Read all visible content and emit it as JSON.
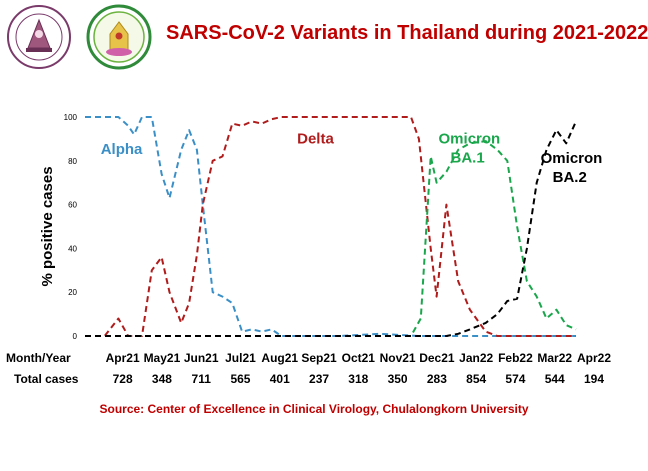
{
  "title": "SARS-CoV-2 Variants in Thailand during 2021-2022",
  "source": "Source: Center of Excellence in Clinical Virology, Chulalongkorn  University",
  "logos": [
    {
      "name": "Center of Excellence in Clinical Virology seal",
      "text": "Center of Excellence in Clinical Virology"
    },
    {
      "name": "Faculty of Medicine Chulalongkorn University seal",
      "text": "Faculty of Medicine Chulalongkorn University"
    }
  ],
  "colors": {
    "title": "#c00000",
    "alpha": "#3b8fc7",
    "delta": "#b01c1c",
    "ba1": "#1aa64b",
    "ba2": "#000000",
    "baseline": "#000000"
  },
  "chart_data": {
    "type": "line",
    "ylabel": "% positive cases",
    "ylim": [
      0,
      100
    ],
    "yticks": [
      0,
      20,
      40,
      60,
      80,
      100
    ],
    "xlim": [
      0,
      12.5
    ],
    "grid": false,
    "month_row_label": "Month/Year",
    "total_row_label": "Total cases",
    "months": [
      {
        "label": "Apr21",
        "x": 0.5,
        "total": "728"
      },
      {
        "label": "May21",
        "x": 1.5,
        "total": "348"
      },
      {
        "label": "Jun21",
        "x": 2.5,
        "total": "711"
      },
      {
        "label": "Jul21",
        "x": 3.5,
        "total": "565"
      },
      {
        "label": "Aug21",
        "x": 4.5,
        "total": "401"
      },
      {
        "label": "Sep21",
        "x": 5.5,
        "total": "237"
      },
      {
        "label": "Oct21",
        "x": 6.5,
        "total": "318"
      },
      {
        "label": "Nov21",
        "x": 7.5,
        "total": "350"
      },
      {
        "label": "Dec21",
        "x": 8.5,
        "total": "283"
      },
      {
        "label": "Jan22",
        "x": 9.5,
        "total": "854"
      },
      {
        "label": "Feb22",
        "x": 10.5,
        "total": "574"
      },
      {
        "label": "Mar22",
        "x": 11.5,
        "total": "544"
      },
      {
        "label": "Apr22",
        "x": 12.5,
        "total": "194"
      }
    ],
    "series": [
      {
        "name": "Alpha",
        "label_lines": [
          "Alpha"
        ],
        "label_pos": {
          "x": 0.4,
          "y": 83
        },
        "x": [
          0,
          0.5,
          0.85,
          1.1,
          1.25,
          1.45,
          1.7,
          1.95,
          2.15,
          2.45,
          2.65,
          2.85,
          3.0,
          3.25,
          3.5,
          3.75,
          4.0,
          4.25,
          4.5,
          4.75,
          5.0,
          5.5,
          6.5,
          7.5,
          8.5,
          9.5,
          10.5,
          11.5,
          12.5
        ],
        "y": [
          100,
          100,
          100,
          96,
          92,
          100,
          100,
          74,
          63,
          85,
          94,
          85,
          60,
          20,
          18,
          15,
          2,
          3,
          2,
          3,
          0,
          0,
          0,
          1,
          0,
          0,
          0,
          0,
          0
        ]
      },
      {
        "name": "Delta",
        "label_lines": [
          "Delta"
        ],
        "label_pos": {
          "x": 5.4,
          "y": 88
        },
        "x": [
          0,
          0.5,
          0.85,
          1.1,
          1.25,
          1.45,
          1.7,
          1.95,
          2.15,
          2.45,
          2.65,
          2.85,
          3.0,
          3.25,
          3.5,
          3.75,
          4.0,
          4.25,
          4.5,
          4.75,
          5.0,
          5.5,
          6.5,
          7.5,
          8.3,
          8.5,
          8.8,
          8.95,
          9.2,
          9.5,
          9.8,
          10.2,
          10.5,
          11.5,
          12.5
        ],
        "y": [
          0,
          0,
          8,
          0,
          0,
          0,
          30,
          36,
          20,
          6,
          15,
          37,
          60,
          80,
          82,
          97,
          96,
          98,
          97,
          99,
          100,
          100,
          100,
          100,
          100,
          90,
          40,
          18,
          60,
          25,
          12,
          2,
          0,
          0,
          0
        ]
      },
      {
        "name": "Omicron BA.1",
        "label_lines": [
          "Omicron",
          "BA.1"
        ],
        "label_pos": {
          "x": 9.0,
          "y": 88
        },
        "x": [
          0,
          8.0,
          8.3,
          8.55,
          8.8,
          8.95,
          9.2,
          9.5,
          9.8,
          10.2,
          10.5,
          10.75,
          11.0,
          11.25,
          11.5,
          11.75,
          12.0,
          12.25,
          12.5
        ],
        "y": [
          0,
          0,
          0,
          8,
          82,
          70,
          75,
          85,
          88,
          89,
          85,
          80,
          50,
          25,
          18,
          8,
          12,
          5,
          3
        ]
      },
      {
        "name": "Omicron BA.2",
        "label_lines": [
          "Omicron",
          "BA.2"
        ],
        "label_pos": {
          "x": 11.6,
          "y": 79
        },
        "x": [
          0,
          8.8,
          9.2,
          9.5,
          9.8,
          10.2,
          10.5,
          10.75,
          11.0,
          11.25,
          11.5,
          11.75,
          12.0,
          12.25,
          12.5
        ],
        "y": [
          0,
          0,
          0,
          1,
          3,
          6,
          10,
          16,
          17,
          40,
          70,
          85,
          94,
          88,
          98
        ]
      }
    ]
  }
}
